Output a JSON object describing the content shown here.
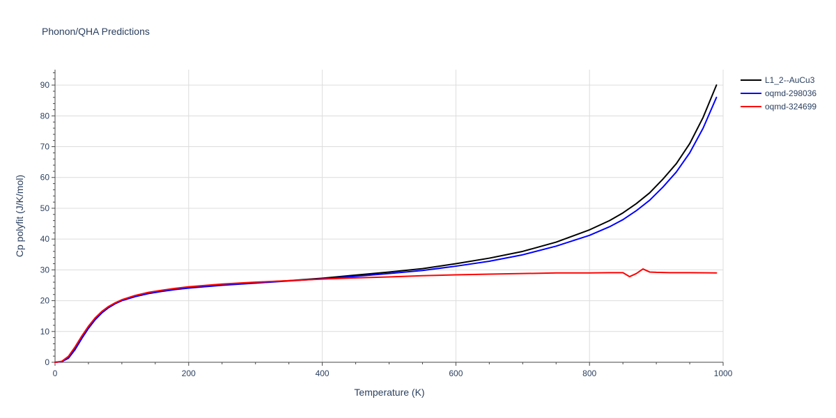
{
  "chart_data": {
    "type": "line",
    "title": "Phonon/QHA Predictions",
    "xlabel": "Temperature (K)",
    "ylabel": "Cp polyfit (J/K/mol)",
    "xlim": [
      0,
      1000
    ],
    "ylim": [
      0,
      95
    ],
    "xticks": [
      0,
      200,
      400,
      600,
      800,
      1000
    ],
    "yticks": [
      0,
      10,
      20,
      30,
      40,
      50,
      60,
      70,
      80,
      90
    ],
    "grid": true,
    "legend_position": "top-right",
    "series": [
      {
        "name": "L1_2--AuCu3",
        "color": "#000000",
        "x": [
          0,
          10,
          20,
          30,
          40,
          50,
          60,
          70,
          80,
          90,
          100,
          120,
          140,
          160,
          180,
          200,
          250,
          300,
          350,
          400,
          450,
          500,
          550,
          600,
          650,
          700,
          750,
          800,
          830,
          850,
          870,
          890,
          910,
          930,
          950,
          970,
          990
        ],
        "y": [
          0,
          0.2,
          1.4,
          4.3,
          7.9,
          11.2,
          14.0,
          16.2,
          17.9,
          19.2,
          20.2,
          21.5,
          22.5,
          23.2,
          23.8,
          24.3,
          25.2,
          25.9,
          26.5,
          27.3,
          28.3,
          29.3,
          30.4,
          32.0,
          33.8,
          36.0,
          39.0,
          43.0,
          46.0,
          48.5,
          51.5,
          55.0,
          59.5,
          64.5,
          71.0,
          79.5,
          90.0
        ]
      },
      {
        "name": "oqmd-298036",
        "color": "#0000ff",
        "x": [
          0,
          10,
          20,
          30,
          40,
          50,
          60,
          70,
          80,
          90,
          100,
          120,
          140,
          160,
          180,
          200,
          250,
          300,
          350,
          400,
          450,
          500,
          550,
          600,
          650,
          700,
          750,
          800,
          830,
          850,
          870,
          890,
          910,
          930,
          950,
          970,
          990
        ],
        "y": [
          0,
          0.2,
          1.3,
          4.1,
          7.7,
          11.0,
          13.8,
          16.0,
          17.7,
          19.0,
          20.0,
          21.3,
          22.3,
          23.0,
          23.6,
          24.1,
          25.0,
          25.7,
          26.4,
          27.1,
          27.9,
          28.8,
          29.8,
          31.2,
          32.8,
          34.9,
          37.7,
          41.2,
          44.0,
          46.3,
          49.2,
          52.6,
          56.9,
          61.8,
          68.0,
          76.0,
          86.0
        ]
      },
      {
        "name": "oqmd-324699",
        "color": "#ff0000",
        "x": [
          0,
          10,
          20,
          30,
          40,
          50,
          60,
          70,
          80,
          90,
          100,
          120,
          140,
          160,
          180,
          200,
          250,
          300,
          350,
          400,
          450,
          500,
          550,
          600,
          650,
          700,
          750,
          800,
          830,
          850,
          860,
          870,
          880,
          890,
          900,
          920,
          950,
          990
        ],
        "y": [
          0,
          0.3,
          1.9,
          5.0,
          8.5,
          11.7,
          14.4,
          16.5,
          18.1,
          19.3,
          20.3,
          21.7,
          22.7,
          23.4,
          24.0,
          24.5,
          25.4,
          26.0,
          26.5,
          27.0,
          27.4,
          27.7,
          28.1,
          28.4,
          28.6,
          28.8,
          29.0,
          29.0,
          29.1,
          29.1,
          27.8,
          28.8,
          30.3,
          29.3,
          29.2,
          29.1,
          29.1,
          29.0
        ]
      }
    ]
  }
}
